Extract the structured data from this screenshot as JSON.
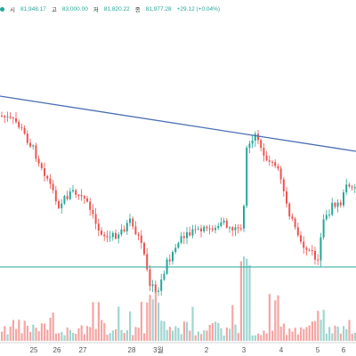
{
  "legend": {
    "open_label": "시",
    "open_value": "81,948.17",
    "high_label": "고",
    "high_value": "83,000.00",
    "low_label": "저",
    "low_value": "81,820.22",
    "close_label": "종",
    "close_value": "81,977.28",
    "change_value": "+29.12 (+0.04%)"
  },
  "colors": {
    "up": "#26a69a",
    "down": "#ef5350",
    "vol_up": "#9fd6d0",
    "vol_down": "#f4a6a4",
    "trendline": "#4a6fb5",
    "hline": "#26a69a"
  },
  "chart_data": {
    "type": "candlestick",
    "x_tick_labels": [
      "25",
      "26",
      "27",
      "28",
      "3월",
      "2",
      "3",
      "4",
      "5",
      "6"
    ],
    "trendline": {
      "start_label": "25",
      "end_label": "6"
    },
    "horizontal_line_present": true,
    "volume_pane": true,
    "grid": false
  }
}
